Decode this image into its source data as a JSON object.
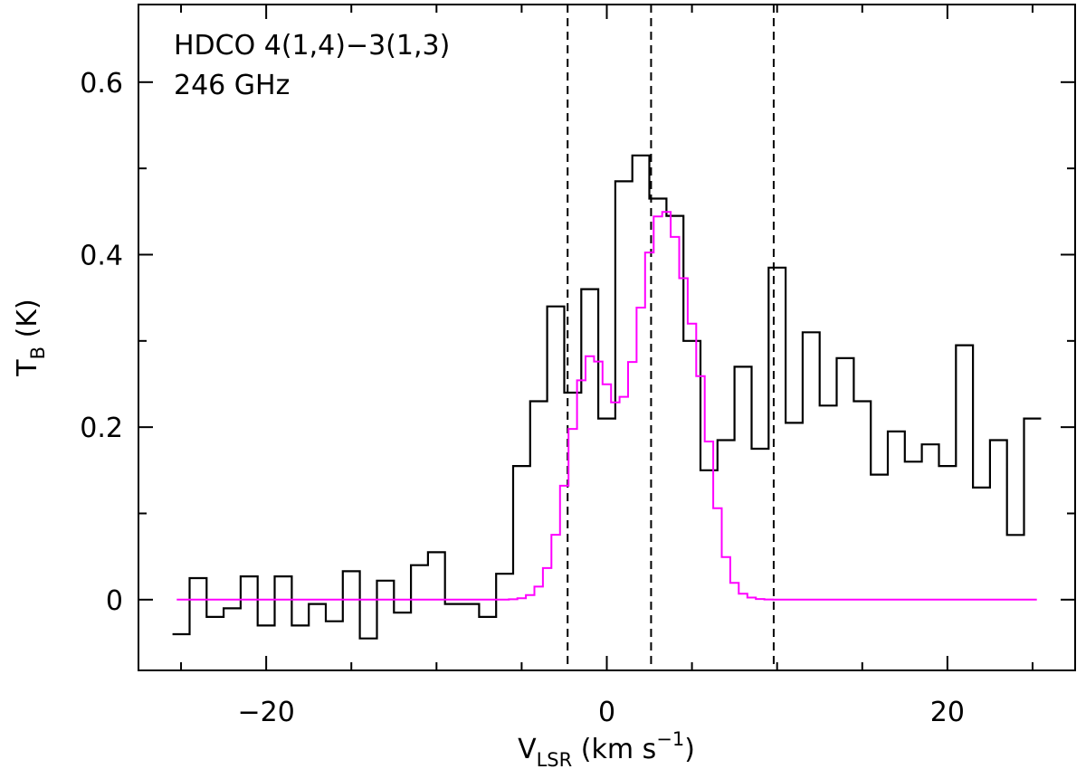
{
  "chart_data": {
    "type": "line",
    "annotations": [
      "HDCO 4(1,4)−3(1,3)",
      "246 GHz"
    ],
    "xlabel": {
      "main": "V",
      "sub": "LSR",
      "after": " (km s",
      "sup": "−1",
      "close": ")"
    },
    "ylabel": {
      "main": "T",
      "sub": "B",
      "after": " (K)"
    },
    "xlim": [
      -27.5,
      27.5
    ],
    "ylim": [
      -0.082,
      0.69
    ],
    "x_ticks": [
      -20,
      0,
      20
    ],
    "x_tick_labels": [
      "−20",
      "0",
      "20"
    ],
    "x_minor_step": 5,
    "y_ticks": [
      0,
      0.2,
      0.4,
      0.6
    ],
    "y_tick_labels": [
      "0",
      "0.2",
      "0.4",
      "0.6"
    ],
    "y_minor_step": 0.1,
    "grid": false,
    "vertical_lines": [
      -2.3,
      2.6,
      9.8
    ],
    "series": [
      {
        "style": "histogram",
        "color": "#000000",
        "x": [
          -25.0,
          -24.0,
          -23.0,
          -22.0,
          -21.0,
          -20.0,
          -19.0,
          -18.0,
          -17.0,
          -16.0,
          -15.0,
          -14.0,
          -13.0,
          -12.0,
          -11.0,
          -10.0,
          -9.0,
          -8.0,
          -7.0,
          -6.0,
          -5.0,
          -4.0,
          -3.0,
          -2.0,
          -1.0,
          0.0,
          1.0,
          2.0,
          3.0,
          4.0,
          5.0,
          6.0,
          7.0,
          8.0,
          9.0,
          10.0,
          11.0,
          12.0,
          13.0,
          14.0,
          15.0,
          16.0,
          17.0,
          18.0,
          19.0,
          20.0,
          21.0,
          22.0,
          23.0,
          24.0,
          25.0
        ],
        "values": [
          -0.04,
          0.025,
          -0.02,
          -0.01,
          0.027,
          -0.03,
          0.027,
          -0.03,
          -0.005,
          -0.025,
          0.033,
          -0.045,
          0.022,
          -0.015,
          0.04,
          0.055,
          -0.005,
          -0.005,
          -0.02,
          0.03,
          0.155,
          0.23,
          0.34,
          0.24,
          0.36,
          0.21,
          0.485,
          0.515,
          0.465,
          0.445,
          0.3,
          0.15,
          0.185,
          0.27,
          0.175,
          0.385,
          0.205,
          0.31,
          0.225,
          0.28,
          0.23,
          0.145,
          0.195,
          0.16,
          0.18,
          0.155,
          0.295,
          0.13,
          0.185,
          0.075,
          0.21
        ]
      },
      {
        "style": "histogram",
        "color": "#ff00ff",
        "model": "sum of three gaussians",
        "x_range": [
          -25.0,
          25.0
        ],
        "step": 0.5,
        "components": [
          {
            "amplitude": 0.27,
            "center": -1.0,
            "sigma": 1.25
          },
          {
            "amplitude": 0.45,
            "center": 3.3,
            "sigma": 1.6
          },
          {
            "amplitude": 0.085,
            "center": 5.6,
            "sigma": 0.8
          }
        ]
      }
    ]
  }
}
